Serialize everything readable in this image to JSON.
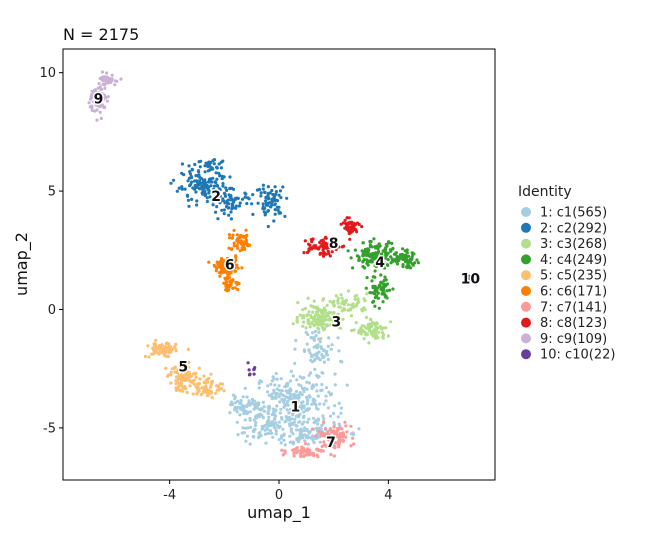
{
  "chart_data": {
    "type": "scatter",
    "title": "N = 2175",
    "xlabel": "umap_1",
    "ylabel": "umap_2",
    "xlim": [
      -7.9,
      7.9
    ],
    "ylim": [
      -7.2,
      11.0
    ],
    "xticks": [
      -4,
      0,
      4
    ],
    "xtick_labels": [
      "-4",
      "0",
      "4"
    ],
    "yticks": [
      -5,
      0,
      5,
      10
    ],
    "ytick_labels": [
      "-5",
      "0",
      "5",
      "10"
    ],
    "grid": false,
    "legend_title": "Identity",
    "legend_position": "right",
    "series": [
      {
        "name": "1: c1(565)",
        "label": "1",
        "count": 565,
        "color": "#A6CEE3",
        "center": [
          0.6,
          -4.1
        ],
        "blobs": [
          [
            0.6,
            -3.9,
            1.3,
            1.1,
            0.45
          ],
          [
            -0.6,
            -4.9,
            0.8,
            0.6,
            0.15
          ],
          [
            1.4,
            -1.7,
            0.6,
            0.8,
            0.12
          ],
          [
            1.0,
            -5.3,
            1.2,
            0.5,
            0.18
          ],
          [
            -1.2,
            -4.1,
            0.5,
            0.4,
            0.1
          ]
        ]
      },
      {
        "name": "2: c2(292)",
        "label": "2",
        "count": 292,
        "color": "#1F78B4",
        "center": [
          -2.3,
          4.8
        ],
        "blobs": [
          [
            -2.8,
            5.2,
            0.9,
            0.6,
            0.45
          ],
          [
            -1.7,
            4.5,
            0.6,
            0.5,
            0.2
          ],
          [
            -0.3,
            4.6,
            0.5,
            0.6,
            0.25
          ],
          [
            -2.4,
            6.1,
            0.5,
            0.3,
            0.1
          ]
        ]
      },
      {
        "name": "3: c3(268)",
        "label": "3",
        "count": 268,
        "color": "#B2DF8A",
        "center": [
          2.1,
          -0.5
        ],
        "blobs": [
          [
            1.5,
            -0.3,
            0.7,
            0.5,
            0.5
          ],
          [
            3.4,
            -0.9,
            0.5,
            0.4,
            0.3
          ],
          [
            2.6,
            0.2,
            0.6,
            0.4,
            0.2
          ]
        ]
      },
      {
        "name": "4: c4(249)",
        "label": "4",
        "count": 249,
        "color": "#33A02C",
        "center": [
          3.7,
          2.0
        ],
        "blobs": [
          [
            3.5,
            2.3,
            0.7,
            0.5,
            0.5
          ],
          [
            4.6,
            2.1,
            0.5,
            0.3,
            0.25
          ],
          [
            3.7,
            0.8,
            0.4,
            0.6,
            0.25
          ]
        ]
      },
      {
        "name": "5: c5(235)",
        "label": "5",
        "count": 235,
        "color": "#FDBF6F",
        "center": [
          -3.5,
          -2.4
        ],
        "blobs": [
          [
            -4.3,
            -1.7,
            0.5,
            0.3,
            0.3
          ],
          [
            -3.4,
            -2.9,
            0.6,
            0.5,
            0.45
          ],
          [
            -2.6,
            -3.3,
            0.5,
            0.4,
            0.25
          ]
        ]
      },
      {
        "name": "6: c6(171)",
        "label": "6",
        "count": 171,
        "color": "#FF7F00",
        "center": [
          -1.8,
          1.9
        ],
        "blobs": [
          [
            -1.9,
            1.8,
            0.4,
            0.3,
            0.5
          ],
          [
            -1.4,
            2.8,
            0.4,
            0.4,
            0.3
          ],
          [
            -1.8,
            1.1,
            0.3,
            0.3,
            0.2
          ]
        ]
      },
      {
        "name": "7: c7(141)",
        "label": "7",
        "count": 141,
        "color": "#FB9A99",
        "center": [
          1.9,
          -5.6
        ],
        "blobs": [
          [
            2.0,
            -5.4,
            0.6,
            0.5,
            0.6
          ],
          [
            1.0,
            -6.0,
            0.6,
            0.2,
            0.4
          ]
        ]
      },
      {
        "name": "8: c8(123)",
        "label": "8",
        "count": 123,
        "color": "#E31A1C",
        "center": [
          2.0,
          2.8
        ],
        "blobs": [
          [
            1.5,
            2.7,
            0.6,
            0.4,
            0.6
          ],
          [
            2.6,
            3.5,
            0.3,
            0.3,
            0.4
          ]
        ]
      },
      {
        "name": "9: c9(109)",
        "label": "9",
        "count": 109,
        "color": "#CAB2D6",
        "center": [
          -6.6,
          8.9
        ],
        "blobs": [
          [
            -6.6,
            8.9,
            0.3,
            0.6,
            0.6
          ],
          [
            -6.2,
            9.7,
            0.3,
            0.2,
            0.4
          ]
        ]
      },
      {
        "name": "10: c10(22)",
        "label": "10",
        "count": 22,
        "color": "#6A3D9A",
        "center": [
          7.0,
          1.3
        ],
        "blobs": [
          [
            7.0,
            1.3,
            0.1,
            0.1,
            0.6
          ],
          [
            -1.0,
            -2.6,
            0.1,
            0.2,
            0.4
          ]
        ]
      }
    ]
  }
}
